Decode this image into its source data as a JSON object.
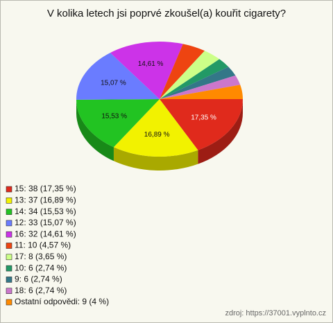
{
  "chart_data": {
    "type": "pie",
    "title": "V kolika letech jsi poprvé zkoušel(a) kouřit cigarety?",
    "categories": [
      "15: 38 (17,35 %)",
      "13: 37 (16,89 %)",
      "14: 34 (15,53 %)",
      "12: 33 (15,07 %)",
      "16: 32 (14,61 %)",
      "11: 10 (4,57 %)",
      "17: 8 (3,65 %)",
      "10: 6 (2,74 %)",
      "9: 6 (2,74 %)",
      "18: 6 (2,74 %)",
      "Ostatní odpovědi: 9 (4 %)"
    ],
    "values": [
      17.35,
      16.89,
      15.53,
      15.07,
      14.61,
      4.57,
      3.65,
      2.74,
      2.74,
      2.74,
      4
    ],
    "value_labels": [
      "17,35 %",
      "16,89 %",
      "15,53 %",
      "15,07 %",
      "14,61 %",
      null,
      null,
      null,
      null,
      null,
      null
    ],
    "colors": [
      "#e02a1c",
      "#f2f200",
      "#22c322",
      "#6a7cff",
      "#cc33e8",
      "#ee4411",
      "#ccff88",
      "#229966",
      "#337788",
      "#cc77cc",
      "#ff8a00"
    ],
    "source": "zdroj: https://37001.vyplnto.cz"
  }
}
